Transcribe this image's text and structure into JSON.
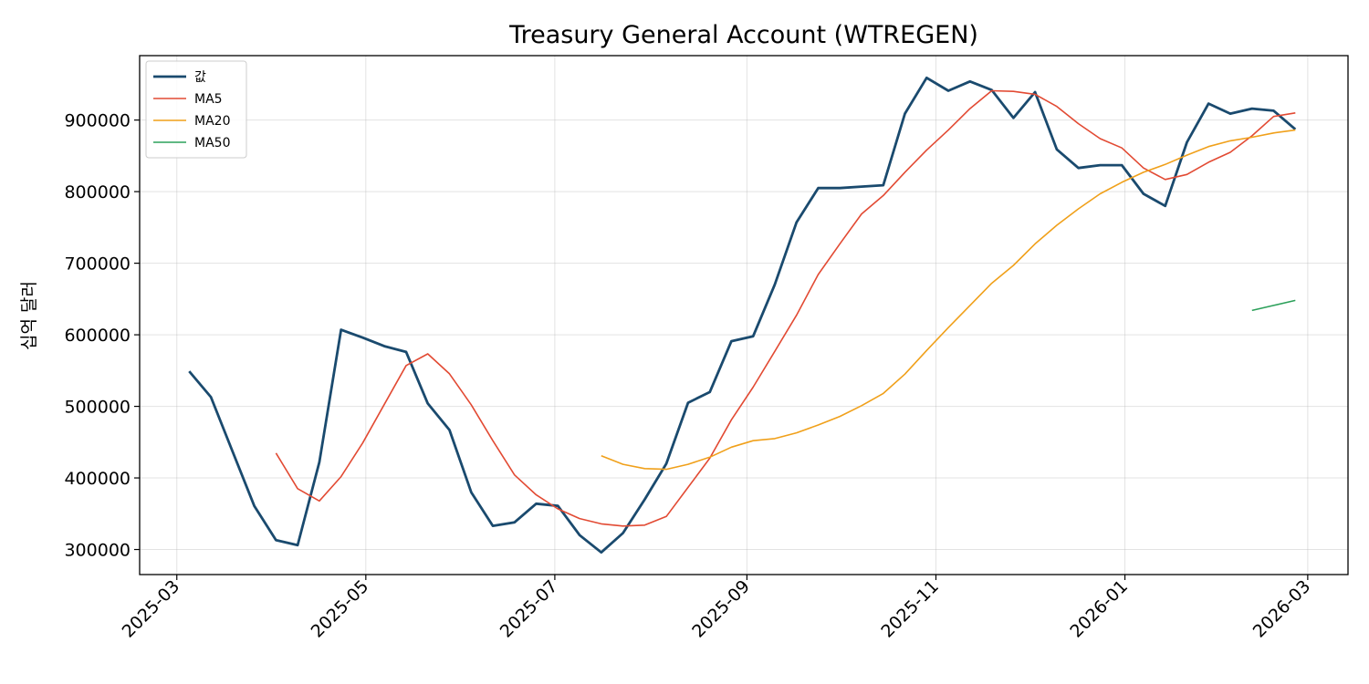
{
  "chart_data": {
    "type": "line",
    "title": "Treasury General Account (WTREGEN)",
    "xlabel": "",
    "ylabel": "십억 달러",
    "x_ticks": [
      "2025-03-01",
      "2025-05-01",
      "2025-07-01",
      "2025-09-01",
      "2025-11-01",
      "2026-01-01",
      "2026-03-01"
    ],
    "x_tick_labels": [
      "2025-03",
      "2025-05",
      "2025-07",
      "2025-09",
      "2025-11",
      "2026-01",
      "2026-03"
    ],
    "y_ticks": [
      300000,
      400000,
      500000,
      600000,
      700000,
      800000,
      900000
    ],
    "y_tick_labels": [
      "300000",
      "400000",
      "500000",
      "600000",
      "700000",
      "800000",
      "900000"
    ],
    "xlim": [
      "2025-02-17",
      "2026-03-14"
    ],
    "ylim": [
      265000,
      990000
    ],
    "grid": true,
    "legend_position": "top-left",
    "x": [
      "2025-03-05",
      "2025-03-12",
      "2025-03-19",
      "2025-03-26",
      "2025-04-02",
      "2025-04-09",
      "2025-04-16",
      "2025-04-23",
      "2025-04-30",
      "2025-05-07",
      "2025-05-14",
      "2025-05-21",
      "2025-05-28",
      "2025-06-04",
      "2025-06-11",
      "2025-06-18",
      "2025-06-25",
      "2025-07-02",
      "2025-07-09",
      "2025-07-16",
      "2025-07-23",
      "2025-07-30",
      "2025-08-06",
      "2025-08-13",
      "2025-08-20",
      "2025-08-27",
      "2025-09-03",
      "2025-09-10",
      "2025-09-17",
      "2025-09-24",
      "2025-10-01",
      "2025-10-08",
      "2025-10-15",
      "2025-10-22",
      "2025-10-29",
      "2025-11-05",
      "2025-11-12",
      "2025-11-19",
      "2025-11-26",
      "2025-12-03",
      "2025-12-10",
      "2025-12-17",
      "2025-12-24",
      "2025-12-31",
      "2026-01-07",
      "2026-01-14",
      "2026-01-21",
      "2026-01-28",
      "2026-02-04",
      "2026-02-11",
      "2026-02-18",
      "2026-02-25"
    ],
    "series": [
      {
        "name": "값",
        "color": "#1a4a6e",
        "width": 2.8,
        "values": [
          549000,
          513000,
          437000,
          361000,
          313000,
          306000,
          422000,
          607000,
          596000,
          584000,
          576000,
          504000,
          467000,
          380000,
          333000,
          338000,
          364000,
          361000,
          320000,
          296000,
          323000,
          370000,
          420000,
          505000,
          520000,
          591000,
          598000,
          670000,
          757000,
          805000,
          805000,
          807000,
          809000,
          909000,
          959000,
          941000,
          954000,
          942000,
          903000,
          939000,
          859000,
          833000,
          837000,
          837000,
          797000,
          780000,
          869000,
          923000,
          909000,
          916000,
          913000,
          887000
        ]
      },
      {
        "name": "MA5",
        "color": "#e24a33",
        "width": 1.6,
        "values": [
          null,
          null,
          null,
          null,
          434700,
          385000,
          367800,
          401800,
          448800,
          503000,
          557000,
          573400,
          545400,
          502200,
          452000,
          404200,
          376400,
          356800,
          343200,
          335800,
          332800,
          334000,
          346200,
          386800,
          427600,
          481200,
          526800,
          576800,
          627200,
          684200,
          727000,
          768800,
          794600,
          827000,
          858000,
          886000,
          916000,
          941000,
          940000,
          936000,
          919000,
          895000,
          874000,
          861000,
          833000,
          817000,
          824000,
          841000,
          855000,
          878000,
          905000,
          910000
        ]
      },
      {
        "name": "MA20",
        "color": "#f0a01a",
        "width": 1.6,
        "values": [
          null,
          null,
          null,
          null,
          null,
          null,
          null,
          null,
          null,
          null,
          null,
          null,
          null,
          null,
          null,
          null,
          null,
          null,
          null,
          431000,
          419000,
          413000,
          412000,
          419000,
          429000,
          443000,
          452000,
          455000,
          463000,
          474000,
          486000,
          501000,
          518000,
          545000,
          578000,
          610000,
          641000,
          672000,
          697000,
          727000,
          753000,
          776000,
          797000,
          813000,
          827000,
          838000,
          851000,
          863000,
          871000,
          876000,
          882000,
          886000
        ]
      },
      {
        "name": "MA50",
        "color": "#2ca05a",
        "width": 1.6,
        "values": [
          null,
          null,
          null,
          null,
          null,
          null,
          null,
          null,
          null,
          null,
          null,
          null,
          null,
          null,
          null,
          null,
          null,
          null,
          null,
          null,
          null,
          null,
          null,
          null,
          null,
          null,
          null,
          null,
          null,
          null,
          null,
          null,
          null,
          null,
          null,
          null,
          null,
          null,
          null,
          null,
          null,
          null,
          null,
          null,
          null,
          null,
          null,
          null,
          null,
          634000,
          641000,
          648000
        ]
      }
    ]
  }
}
